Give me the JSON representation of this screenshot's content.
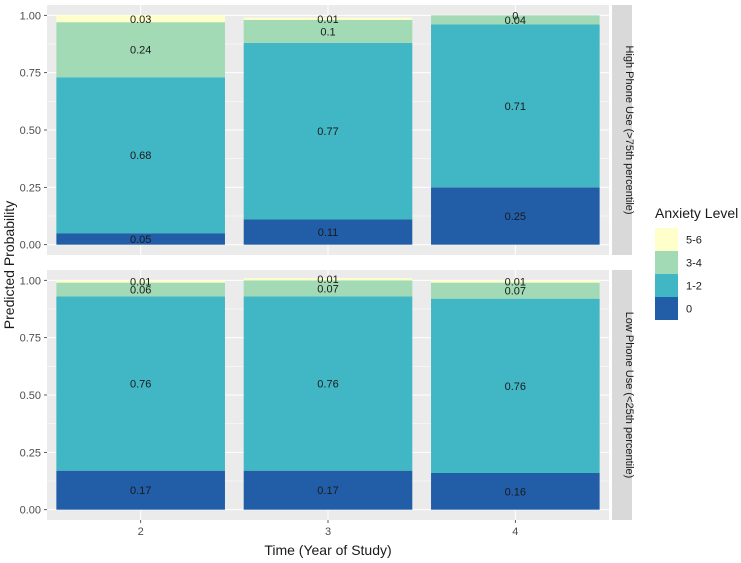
{
  "chart_data": {
    "type": "bar",
    "subtype": "stacked-faceted",
    "xlabel": "Time (Year of Study)",
    "ylabel": "Predicted Probability",
    "ylim": [
      0,
      1
    ],
    "y_ticks": [
      "0.00",
      "0.25",
      "0.50",
      "0.75",
      "1.00"
    ],
    "categories": [
      "2",
      "3",
      "4"
    ],
    "legend": {
      "title": "Anxiety Level",
      "placement": "right",
      "entries": [
        {
          "label": "5-6",
          "color": "#ffffcc"
        },
        {
          "label": "3-4",
          "color": "#a1dab4"
        },
        {
          "label": "1-2",
          "color": "#41b6c4"
        },
        {
          "label": "0",
          "color": "#225ea8"
        }
      ]
    },
    "stack_order_bottom_to_top": [
      "0",
      "1-2",
      "3-4",
      "5-6"
    ],
    "facets": [
      {
        "strip": "High Phone Use (>75th percentile)",
        "bars": [
          {
            "category": "2",
            "values": [
              0.05,
              0.68,
              0.24,
              0.03
            ],
            "labels": [
              "0.05",
              "0.68",
              "0.24",
              "0.03"
            ]
          },
          {
            "category": "3",
            "values": [
              0.11,
              0.77,
              0.1,
              0.01
            ],
            "labels": [
              "0.11",
              "0.77",
              "0.1",
              "0.01"
            ]
          },
          {
            "category": "4",
            "values": [
              0.25,
              0.71,
              0.04,
              0.0
            ],
            "labels": [
              "0.25",
              "0.71",
              "0.04",
              "0"
            ]
          }
        ]
      },
      {
        "strip": "Low Phone Use (<25th percentile)",
        "bars": [
          {
            "category": "2",
            "values": [
              0.17,
              0.76,
              0.06,
              0.01
            ],
            "labels": [
              "0.17",
              "0.76",
              "0.06",
              "0.01"
            ]
          },
          {
            "category": "3",
            "values": [
              0.17,
              0.76,
              0.07,
              0.01
            ],
            "labels": [
              "0.17",
              "0.76",
              "0.07",
              "0.01"
            ]
          },
          {
            "category": "4",
            "values": [
              0.16,
              0.76,
              0.07,
              0.01
            ],
            "labels": [
              "0.16",
              "0.76",
              "0.07",
              "0.01"
            ]
          }
        ]
      }
    ]
  }
}
